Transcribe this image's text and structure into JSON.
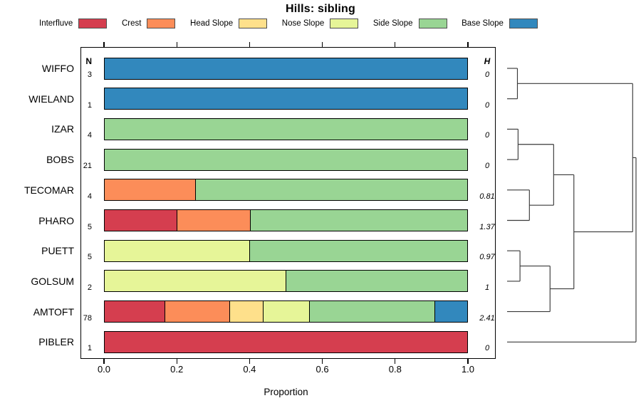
{
  "title": "Hills: sibling",
  "chart_data": {
    "type": "bar",
    "stacked": true,
    "horizontal": true,
    "title": "Hills: sibling",
    "xlabel": "Proportion",
    "xlim": [
      0,
      1
    ],
    "x_ticks": {
      "labels": [
        "0.0",
        "0.2",
        "0.4",
        "0.6",
        "0.8",
        "1.0"
      ],
      "values": [
        0,
        0.2,
        0.4,
        0.6,
        0.8,
        1.0
      ]
    },
    "legend_position": "top",
    "categories": [
      "Interfluve",
      "Crest",
      "Head Slope",
      "Nose Slope",
      "Side Slope",
      "Base Slope"
    ],
    "colors": [
      "#D53E4F",
      "#FC8D59",
      "#FEE08B",
      "#E6F598",
      "#99D594",
      "#3288BD"
    ],
    "column_headers": {
      "n": "N",
      "entropy": "H"
    },
    "rows": [
      {
        "label": "WIFFO",
        "n": "3",
        "entropy": "0",
        "proportions": [
          0,
          0,
          0,
          0,
          0,
          1
        ]
      },
      {
        "label": "WIELAND",
        "n": "1",
        "entropy": "0",
        "proportions": [
          0,
          0,
          0,
          0,
          0,
          1
        ]
      },
      {
        "label": "IZAR",
        "n": "4",
        "entropy": "0",
        "proportions": [
          0,
          0,
          0,
          0,
          1,
          0
        ]
      },
      {
        "label": "BOBS",
        "n": "21",
        "entropy": "0",
        "proportions": [
          0,
          0,
          0,
          0,
          1,
          0
        ]
      },
      {
        "label": "TECOMAR",
        "n": "4",
        "entropy": "0.81",
        "proportions": [
          0,
          0.25,
          0,
          0,
          0.75,
          0
        ]
      },
      {
        "label": "PHARO",
        "n": "5",
        "entropy": "1.37",
        "proportions": [
          0.2,
          0.2,
          0,
          0,
          0.6,
          0
        ]
      },
      {
        "label": "PUETT",
        "n": "5",
        "entropy": "0.97",
        "proportions": [
          0,
          0,
          0,
          0.4,
          0.6,
          0
        ]
      },
      {
        "label": "GOLSUM",
        "n": "2",
        "entropy": "1",
        "proportions": [
          0,
          0,
          0,
          0.5,
          0.5,
          0
        ]
      },
      {
        "label": "AMTOFT",
        "n": "78",
        "entropy": "2.41",
        "proportions": [
          0.1667,
          0.1795,
          0.0897,
          0.1282,
          0.3462,
          0.0897
        ]
      },
      {
        "label": "PIBLER",
        "n": "1",
        "entropy": "0",
        "proportions": [
          1,
          0,
          0,
          0,
          0,
          0
        ]
      }
    ],
    "dendrogram": {
      "leaf_order": [
        "WIFFO",
        "WIELAND",
        "IZAR",
        "BOBS",
        "TECOMAR",
        "PHARO",
        "PUETT",
        "GOLSUM",
        "AMTOFT",
        "PIBLER"
      ],
      "merges": [
        {
          "a": "WIFFO",
          "b": "WIELAND",
          "height": 0.08
        },
        {
          "a": "IZAR",
          "b": "BOBS",
          "height": 0.085
        },
        {
          "a": "TECOMAR",
          "b": "PHARO",
          "height": 0.173
        },
        {
          "a": "PUETT",
          "b": "GOLSUM",
          "height": 0.1
        },
        {
          "a": 1,
          "b": 2,
          "height": 0.361
        },
        {
          "a": 3,
          "b": "AMTOFT",
          "height": 0.333
        },
        {
          "a": 4,
          "b": 5,
          "height": 0.518
        },
        {
          "a": 0,
          "b": 6,
          "height": 0.974
        },
        {
          "a": 7,
          "b": "PIBLER",
          "height": 1.0
        }
      ]
    }
  }
}
